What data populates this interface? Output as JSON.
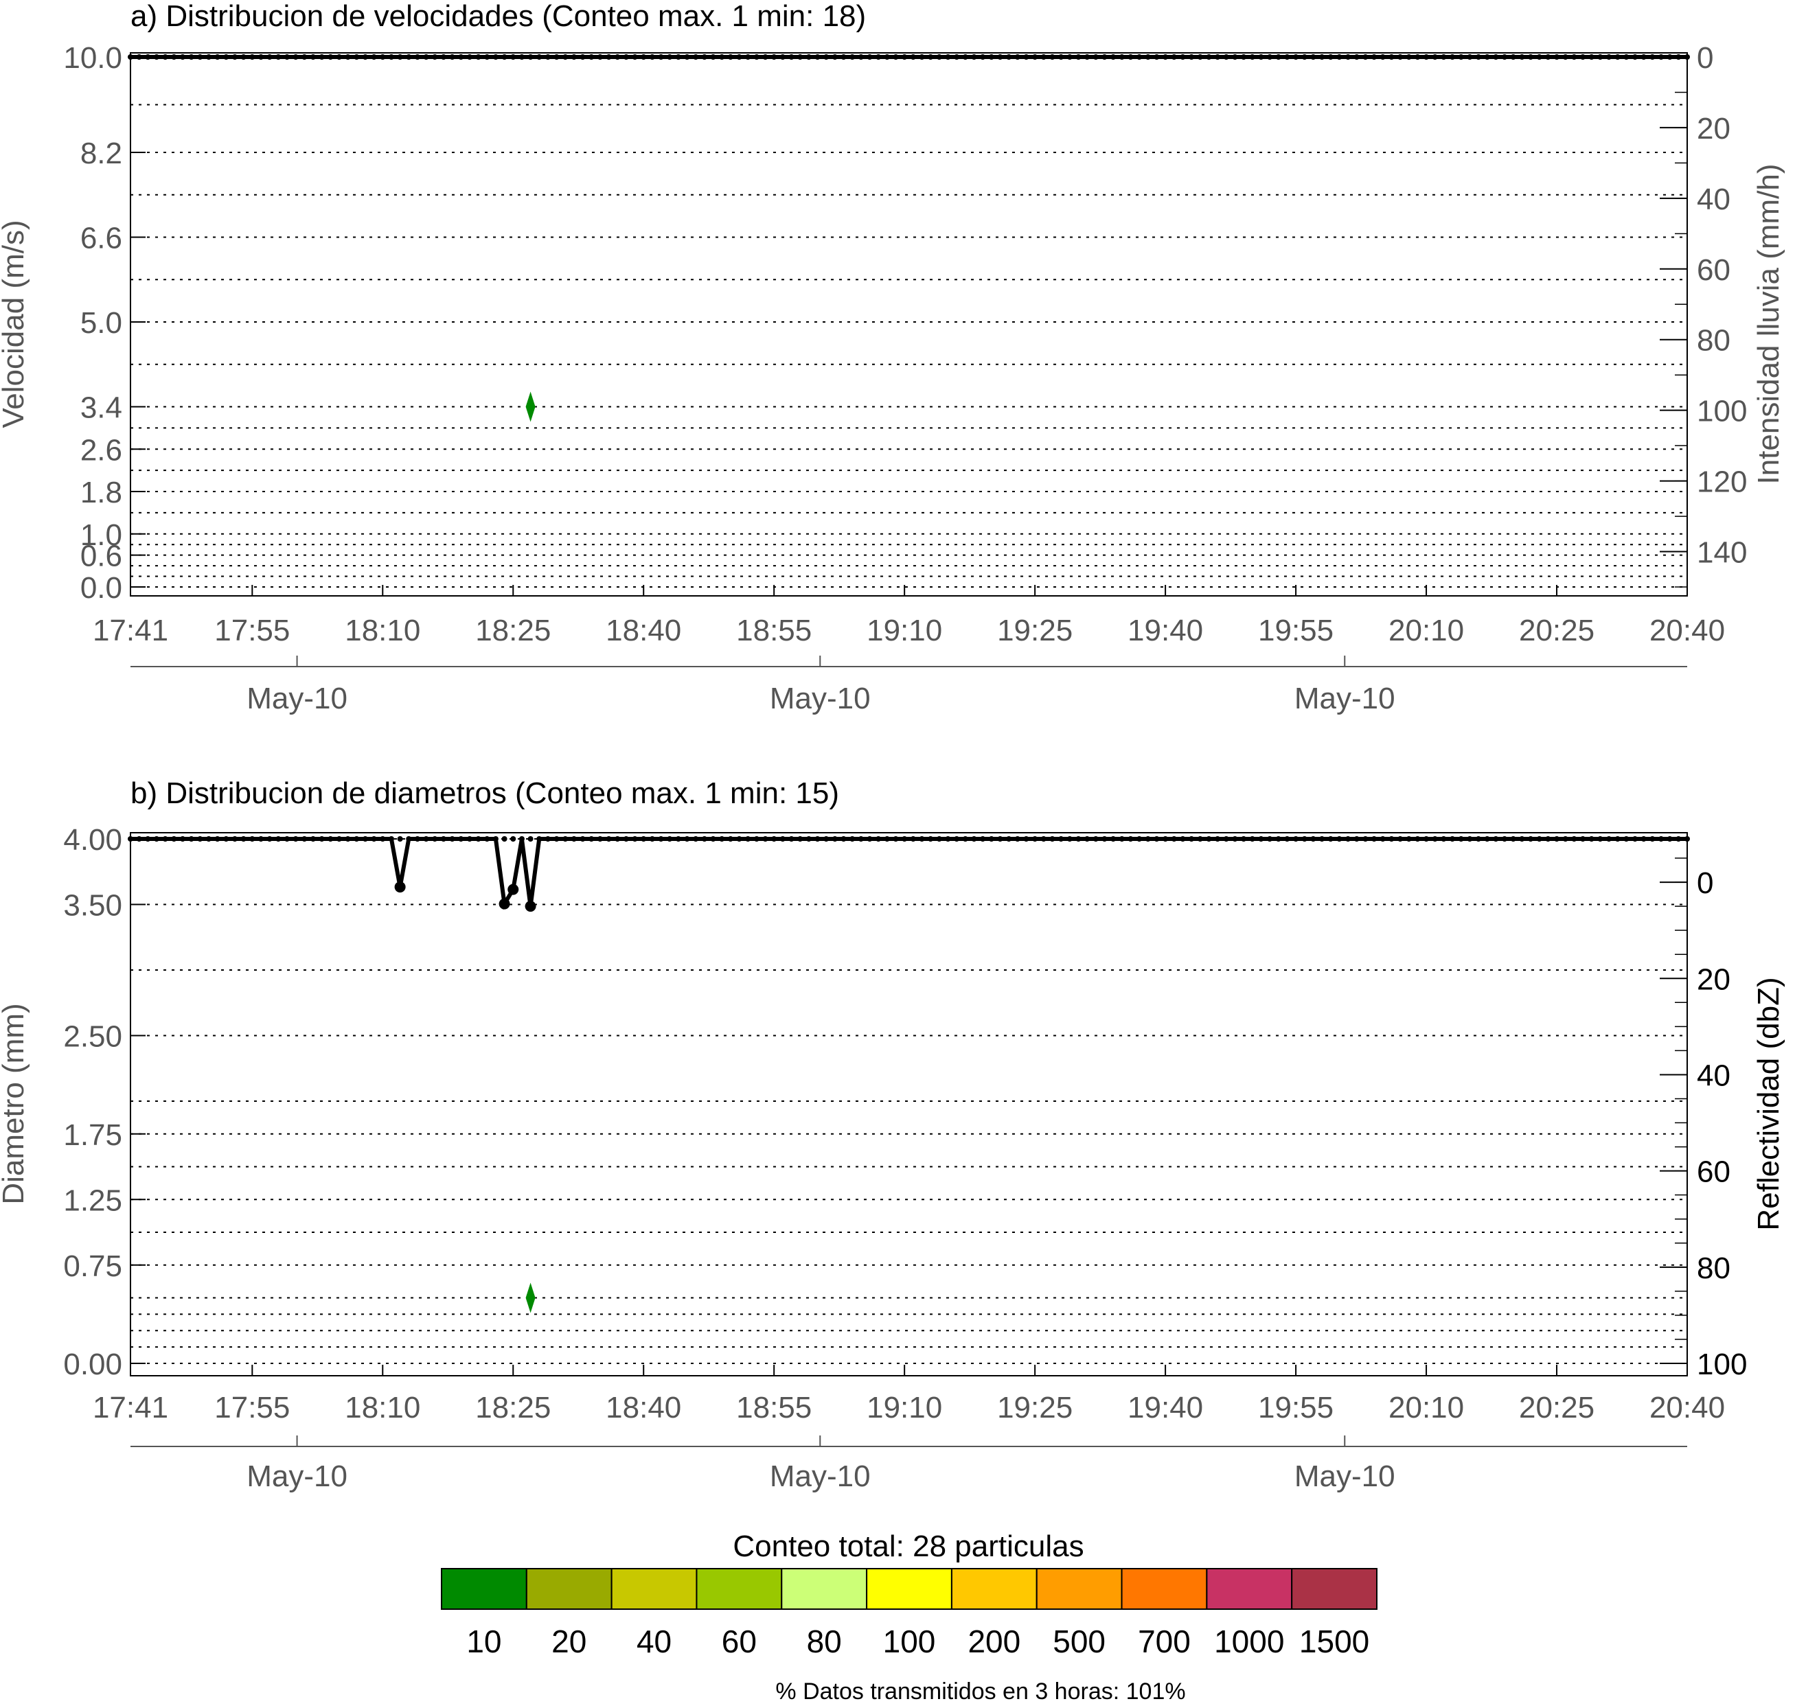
{
  "chart_data": [
    {
      "type": "scatter",
      "title": "a) Distribucion de velocidades (Conteo max. 1 min: 18)",
      "ylabel": "Velocidad (m/s)",
      "y2label": "Intensidad lluvia (mm/h)",
      "x_ticks": [
        "17:41",
        "17:55",
        "18:10",
        "18:25",
        "18:40",
        "18:55",
        "19:10",
        "19:25",
        "19:40",
        "19:55",
        "20:10",
        "20:25",
        "20:40"
      ],
      "date_labels": [
        "May-10",
        "May-10",
        "May-10"
      ],
      "y_tick_labels": [
        "0.0",
        "0.6",
        "1.0",
        "1.8",
        "2.6",
        "3.4",
        "5.0",
        "6.6",
        "8.2",
        "10.0"
      ],
      "y_grid_values": [
        0.0,
        0.2,
        0.4,
        0.6,
        0.8,
        1.0,
        1.4,
        1.8,
        2.2,
        2.6,
        3.0,
        3.4,
        4.2,
        5.0,
        5.8,
        6.6,
        7.4,
        8.2,
        9.1,
        10.0
      ],
      "y_range": [
        0.0,
        10.0
      ],
      "y2_tick_labels": [
        "0",
        "20",
        "40",
        "60",
        "80",
        "100",
        "120",
        "140"
      ],
      "y2_range": [
        0,
        150
      ],
      "points": [
        {
          "time": "18:27",
          "value": 3.4,
          "count_class": "10"
        }
      ],
      "rain_line": {
        "time": [
          "17:41",
          "20:40"
        ],
        "value": [
          0,
          0
        ]
      },
      "grid": "dotted"
    },
    {
      "type": "scatter",
      "title": "b) Distribucion de diametros (Conteo max. 1 min: 15)",
      "ylabel": "Diametro (mm)",
      "y2label": "Reflectividad (dbZ)",
      "x_ticks": [
        "17:41",
        "17:55",
        "18:10",
        "18:25",
        "18:40",
        "18:55",
        "19:10",
        "19:25",
        "19:40",
        "19:55",
        "20:10",
        "20:25",
        "20:40"
      ],
      "date_labels": [
        "May-10",
        "May-10",
        "May-10"
      ],
      "y_tick_labels": [
        "0.00",
        "0.75",
        "1.25",
        "1.75",
        "2.50",
        "3.50",
        "4.00"
      ],
      "y_grid_values": [
        0.0,
        0.125,
        0.25,
        0.375,
        0.5,
        0.75,
        1.0,
        1.25,
        1.5,
        1.75,
        2.0,
        2.5,
        3.0,
        3.5,
        4.0
      ],
      "y_range": [
        0.0,
        4.0
      ],
      "y2_tick_labels": [
        "0",
        "20",
        "40",
        "60",
        "80",
        "100"
      ],
      "y2_range": [
        -9,
        100
      ],
      "points": [
        {
          "time": "18:27",
          "value": 0.5,
          "count_class": "10"
        }
      ],
      "reflectivity_line": {
        "time": [
          "17:41",
          "18:11",
          "18:12",
          "18:13",
          "18:23",
          "18:24",
          "18:25",
          "18:26",
          "18:27",
          "18:28",
          "20:40"
        ],
        "value": [
          -9,
          -9,
          1,
          -9,
          -9,
          4.5,
          1.5,
          -9,
          5,
          -9,
          -9
        ]
      },
      "grid": "dotted"
    }
  ],
  "legend": {
    "title": "Conteo total: 28 particulas",
    "labels": [
      "10",
      "20",
      "40",
      "60",
      "80",
      "100",
      "200",
      "500",
      "700",
      "1000",
      "1500"
    ],
    "colors": [
      "#008a00",
      "#99aa00",
      "#c8c800",
      "#99c800",
      "#ccff77",
      "#ffff00",
      "#ffc800",
      "#ff9d00",
      "#ff7700",
      "#c83264",
      "#aa3246"
    ]
  },
  "footer": "% Datos transmitidos en 3 horas: 101%"
}
